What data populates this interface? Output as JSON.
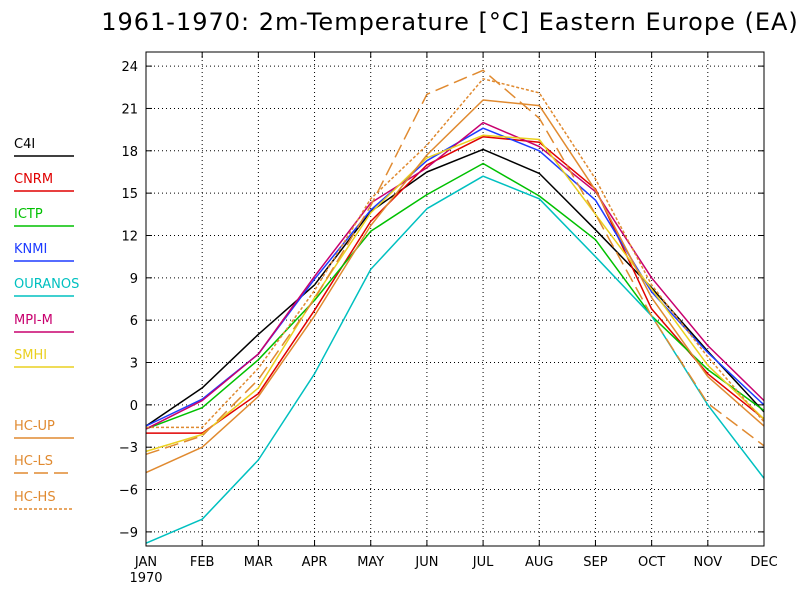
{
  "chart_data": {
    "type": "line",
    "title": "1961-1970: 2m-Temperature [°C] Eastern Europe (EA)",
    "x_year_label": "1970",
    "categories": [
      "JAN",
      "FEB",
      "MAR",
      "APR",
      "MAY",
      "JUN",
      "JUL",
      "AUG",
      "SEP",
      "OCT",
      "NOV",
      "DEC"
    ],
    "ylim": [
      -10,
      25
    ],
    "yticks": [
      -9,
      -6,
      -3,
      0,
      3,
      6,
      9,
      12,
      15,
      18,
      21,
      24
    ],
    "ytick_labels": [
      "−9",
      "−6",
      "−3",
      "0",
      "3",
      "6",
      "9",
      "12",
      "15",
      "18",
      "21",
      "24"
    ],
    "grid": true,
    "legend_position": "left",
    "series": [
      {
        "name": "C4I",
        "color": "#000000",
        "dash": "solid",
        "values": [
          -1.5,
          1.2,
          5.0,
          8.5,
          13.7,
          16.5,
          18.1,
          16.4,
          12.4,
          8.3,
          3.8,
          -0.5
        ]
      },
      {
        "name": "CNRM",
        "color": "#e00000",
        "dash": "solid",
        "values": [
          -2.0,
          -2.0,
          0.8,
          6.7,
          13.0,
          17.0,
          19.0,
          18.6,
          15.3,
          6.8,
          2.2,
          -1.0
        ]
      },
      {
        "name": "ICTP",
        "color": "#00c000",
        "dash": "solid",
        "values": [
          -1.7,
          -0.2,
          3.2,
          7.4,
          12.3,
          14.9,
          17.1,
          14.8,
          11.7,
          6.3,
          2.5,
          -0.4
        ]
      },
      {
        "name": "KNMI",
        "color": "#1e3cff",
        "dash": "solid",
        "values": [
          -1.5,
          0.4,
          3.6,
          8.9,
          13.8,
          17.3,
          19.6,
          18.0,
          14.5,
          8.0,
          3.7,
          0.0
        ]
      },
      {
        "name": "OURANOS",
        "color": "#00c0c0",
        "dash": "solid",
        "values": [
          -9.8,
          -8.1,
          -3.9,
          2.2,
          9.6,
          13.9,
          16.2,
          14.6,
          10.5,
          6.3,
          0.0,
          -5.2
        ]
      },
      {
        "name": "MPI-M",
        "color": "#c8006e",
        "dash": "solid",
        "values": [
          -1.7,
          0.3,
          3.6,
          9.1,
          14.3,
          16.8,
          20.0,
          18.3,
          15.1,
          9.0,
          4.2,
          0.3
        ]
      },
      {
        "name": "SMHI",
        "color": "#ead020",
        "dash": "solid",
        "values": [
          -3.3,
          -2.1,
          1.2,
          7.6,
          13.6,
          17.5,
          19.1,
          18.8,
          13.5,
          8.2,
          2.8,
          -1.0
        ]
      },
      {
        "name": "HC-UP",
        "color": "#e08a30",
        "dash": "solid",
        "values": [
          -4.8,
          -3.0,
          0.6,
          6.3,
          12.7,
          17.7,
          21.6,
          21.2,
          15.2,
          7.6,
          2.0,
          -1.5
        ]
      },
      {
        "name": "HC-LS",
        "color": "#e08a30",
        "dash": "long",
        "values": [
          -3.5,
          -2.2,
          1.8,
          7.5,
          14.1,
          22.0,
          23.7,
          20.3,
          13.5,
          6.3,
          0.1,
          -2.9
        ]
      },
      {
        "name": "HC-HS",
        "color": "#e08a30",
        "dash": "dot",
        "values": [
          -1.6,
          -1.6,
          2.6,
          8.1,
          14.6,
          18.4,
          23.1,
          22.1,
          16.0,
          8.5,
          3.4,
          -1.2
        ]
      }
    ]
  }
}
